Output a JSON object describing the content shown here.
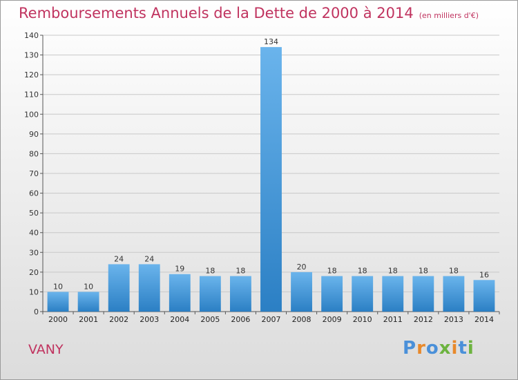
{
  "title": "Remboursements Annuels de la Dette de 2000 à 2014",
  "unit": "(en milliers d'€)",
  "commune": "VANY",
  "logo": {
    "text": "Proxiti",
    "letters": [
      {
        "ch": "P",
        "color": "#4a90d9"
      },
      {
        "ch": "r",
        "color": "#e8892b"
      },
      {
        "ch": "o",
        "color": "#4a90d9"
      },
      {
        "ch": "x",
        "color": "#6cb33f"
      },
      {
        "ch": "i",
        "color": "#e8892b"
      },
      {
        "ch": "t",
        "color": "#4a90d9"
      },
      {
        "ch": "i",
        "color": "#6cb33f"
      }
    ]
  },
  "colors": {
    "title": "#c0335f",
    "bar_top": "#6ab4ec",
    "bar_bottom": "#2b7fc4",
    "grid": "#c8c8c8"
  },
  "chart_data": {
    "type": "bar",
    "title": "Remboursements Annuels de la Dette de 2000 à 2014",
    "xlabel": "",
    "ylabel": "",
    "categories": [
      "2000",
      "2001",
      "2002",
      "2003",
      "2004",
      "2005",
      "2006",
      "2007",
      "2008",
      "2009",
      "2010",
      "2011",
      "2012",
      "2013",
      "2014"
    ],
    "values": [
      10,
      10,
      24,
      24,
      19,
      18,
      18,
      134,
      20,
      18,
      18,
      18,
      18,
      18,
      16
    ],
    "ylim": [
      0,
      140
    ],
    "yticks": [
      0,
      10,
      20,
      30,
      40,
      50,
      60,
      70,
      80,
      90,
      100,
      110,
      120,
      130,
      140
    ],
    "grid": true,
    "legend": "none"
  }
}
